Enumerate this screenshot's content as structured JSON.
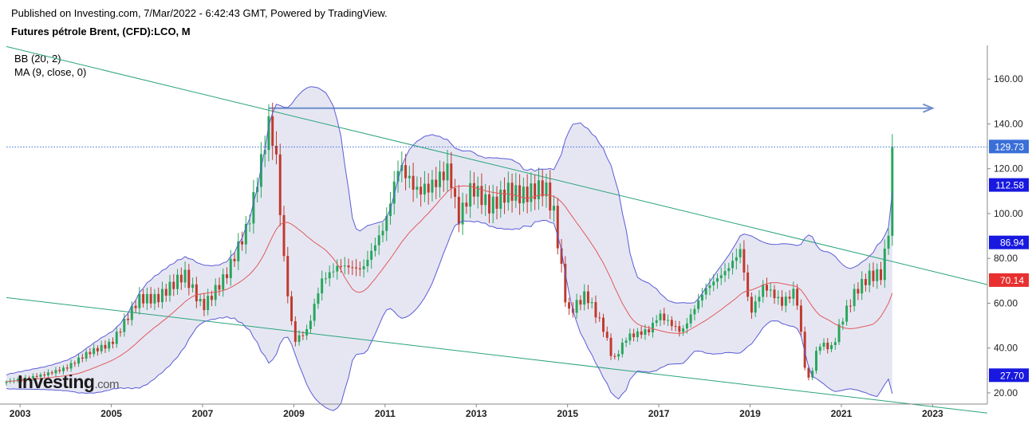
{
  "header": {
    "published": "Published on Investing.com, 7/Mar/2022 - 6:42:43 GMT, Powered by TradingView.",
    "instrument": "Futures pétrole Brent, (CFD):LCO, M"
  },
  "indicators": [
    "BB (20, 2)",
    "MA (9, close, 0)"
  ],
  "logo": {
    "main": "Investing",
    "suffix": ".com"
  },
  "colors": {
    "bull": "#26a65b",
    "bear": "#c0392b",
    "band": "#5b5bd6",
    "band_fill": "#e6e6f3",
    "ma": "#e05a5a",
    "trend": "#2aa37a",
    "arrow": "#6f8fc9",
    "last_price": "#3a6fd8"
  },
  "chart_data": {
    "type": "line",
    "title": "Futures pétrole Brent, (CFD):LCO, M",
    "xlabel": "",
    "ylabel": "",
    "xlim": [
      2002.7,
      2024.2
    ],
    "ylim": [
      15,
      175
    ],
    "y_ticks": [
      20,
      40,
      60,
      80,
      100,
      120,
      140,
      160
    ],
    "y_tick_labels": [
      "20.00",
      "40.00",
      "60.00",
      "80.00",
      "100.00",
      "120.00",
      "140.00",
      "160.00"
    ],
    "x_ticks": [
      2003,
      2005,
      2007,
      2009,
      2011,
      2013,
      2015,
      2017,
      2019,
      2021,
      2023
    ],
    "x_tick_labels": [
      "2003",
      "2005",
      "2007",
      "2009",
      "2011",
      "2013",
      "2015",
      "2017",
      "2019",
      "2021",
      "2023"
    ],
    "price_keypoints": [
      [
        2002.7,
        25
      ],
      [
        2003.5,
        28
      ],
      [
        2004.0,
        31
      ],
      [
        2004.5,
        38
      ],
      [
        2005.0,
        42
      ],
      [
        2005.6,
        62
      ],
      [
        2006.0,
        62
      ],
      [
        2006.6,
        73
      ],
      [
        2007.0,
        58
      ],
      [
        2007.5,
        72
      ],
      [
        2008.0,
        95
      ],
      [
        2008.45,
        140
      ],
      [
        2008.6,
        128
      ],
      [
        2008.8,
        75
      ],
      [
        2009.0,
        43
      ],
      [
        2009.3,
        48
      ],
      [
        2009.6,
        70
      ],
      [
        2010.0,
        77
      ],
      [
        2010.5,
        75
      ],
      [
        2011.0,
        95
      ],
      [
        2011.3,
        122
      ],
      [
        2011.7,
        110
      ],
      [
        2012.0,
        112
      ],
      [
        2012.4,
        120
      ],
      [
        2012.6,
        97
      ],
      [
        2012.9,
        112
      ],
      [
        2013.3,
        103
      ],
      [
        2013.7,
        110
      ],
      [
        2014.0,
        108
      ],
      [
        2014.5,
        112
      ],
      [
        2014.7,
        100
      ],
      [
        2015.0,
        55
      ],
      [
        2015.4,
        64
      ],
      [
        2015.8,
        48
      ],
      [
        2016.0,
        34
      ],
      [
        2016.3,
        45
      ],
      [
        2016.8,
        48
      ],
      [
        2017.0,
        55
      ],
      [
        2017.5,
        47
      ],
      [
        2018.0,
        66
      ],
      [
        2018.5,
        75
      ],
      [
        2018.8,
        84
      ],
      [
        2019.0,
        55
      ],
      [
        2019.3,
        68
      ],
      [
        2019.7,
        60
      ],
      [
        2020.0,
        66
      ],
      [
        2020.2,
        32
      ],
      [
        2020.3,
        25
      ],
      [
        2020.5,
        42
      ],
      [
        2020.8,
        40
      ],
      [
        2021.0,
        52
      ],
      [
        2021.3,
        65
      ],
      [
        2021.6,
        72
      ],
      [
        2021.9,
        73
      ],
      [
        2022.0,
        90
      ],
      [
        2022.1,
        100
      ],
      [
        2022.18,
        129.73
      ]
    ],
    "arrow": {
      "from": [
        2008.45,
        147
      ],
      "to": [
        2023.0,
        147
      ]
    },
    "trendlines": [
      {
        "from": [
          2002.7,
          174.5
        ],
        "to": [
          2024.2,
          68.3
        ]
      },
      {
        "from": [
          2002.7,
          62.5
        ],
        "to": [
          2024.2,
          11
        ]
      }
    ],
    "last_price": 129.73,
    "price_labels": [
      {
        "label": "129.73",
        "value": 129.73,
        "color": "#3a6fd8",
        "text_color": "#ffffff"
      },
      {
        "label": "112.58",
        "value": 112.58,
        "color": "#1818e0",
        "text_color": "#ffffff"
      },
      {
        "label": "86.94",
        "value": 86.94,
        "color": "#1818e0",
        "text_color": "#ffffff"
      },
      {
        "label": "70.14",
        "value": 70.14,
        "color": "#e83030",
        "text_color": "#ffffff"
      },
      {
        "label": "27.70",
        "value": 27.7,
        "color": "#1818e0",
        "text_color": "#ffffff"
      }
    ],
    "grid": false,
    "legend": "top-left"
  }
}
